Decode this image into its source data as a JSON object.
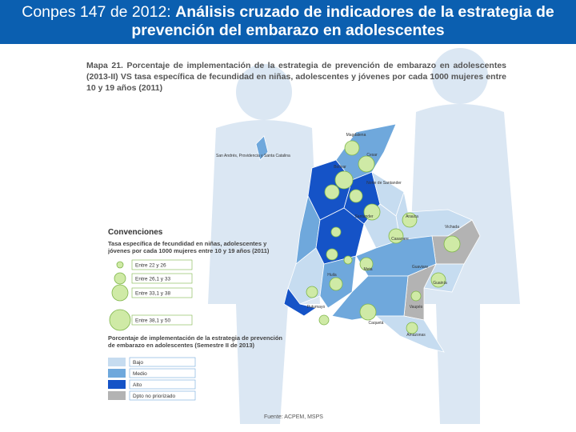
{
  "header": {
    "title_lead": "Conpes 147 de 2012:",
    "title_main": "Análisis cruzado de indicadores de la estrategia de prevención del embarazo en adolescentes"
  },
  "map": {
    "title": "Mapa 21. Porcentaje de implementación de la estrategia de prevención de embarazo en adolescentes (2013-II) VS tasa específica de fecundidad en niñas, adolescentes y jóvenes por cada 1000 mujeres entre 10 y 19 años (2011)",
    "island_label": "San Andrés, Providencia y Santa Catalina",
    "region_labels": [
      "Magdalena",
      "Cesar",
      "Bolívar",
      "Norte de Santander",
      "Santander",
      "Arauca",
      "Casanare",
      "Vichada",
      "Meta",
      "Guainía",
      "Guaviare",
      "Vaupés",
      "Caquetá",
      "Huila",
      "Putumayo",
      "Amazonas"
    ],
    "source": "Fuente: ACPEM, MSPS"
  },
  "legend": {
    "title": "Convenciones",
    "rate_title": "Tasa específica de fecundidad en niñas, adolescentes y jóvenes por cada 1000 mujeres entre 10 y 19 años (2011)",
    "rate_items": [
      "Entre 22 y 26",
      "Entre 26,1 y 33",
      "Entre 33,1 y 38",
      "Entre 38,1 y 50"
    ],
    "impl_title": "Porcentaje de implementación de la estrategia de prevención de embarazo en adolescentes (Semestre II de 2013)",
    "impl_items": [
      "Bajo",
      "Medio",
      "Alto",
      "Dpto no priorizado"
    ]
  }
}
